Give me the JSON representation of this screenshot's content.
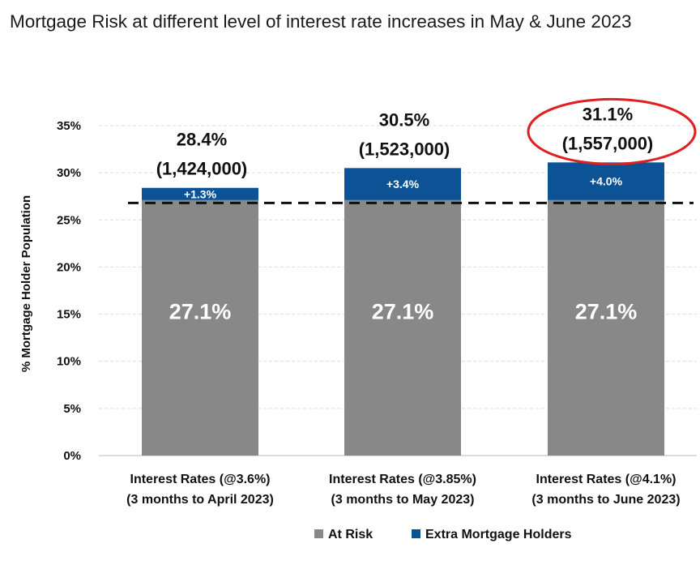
{
  "title": "Mortgage Risk at different level of interest rate increases in May & June 2023",
  "colors": {
    "at_risk": "#888888",
    "extra": "#0b5394",
    "highlight": "#e02020",
    "grid": "#dddddd"
  },
  "chart_data": {
    "type": "bar",
    "stacked": true,
    "ylabel": "% Mortgage Holder Population",
    "ylim": [
      0,
      35
    ],
    "yticks": [
      "0%",
      "5%",
      "10%",
      "15%",
      "20%",
      "25%",
      "30%",
      "35%"
    ],
    "ytick_values": [
      0,
      5,
      10,
      15,
      20,
      25,
      30,
      35
    ],
    "grid": true,
    "reference_line": 26.8,
    "categories": [
      [
        "Interest Rates (@3.6%)",
        "(3 months to April 2023)"
      ],
      [
        "Interest Rates (@3.85%)",
        "(3 months to May 2023)"
      ],
      [
        "Interest Rates (@4.1%)",
        "(3 months to June 2023)"
      ]
    ],
    "series": [
      {
        "name": "At Risk",
        "values": [
          27.1,
          27.1,
          27.1
        ],
        "labels": [
          "27.1%",
          "27.1%",
          "27.1%"
        ]
      },
      {
        "name": "Extra Mortgage Holders",
        "values": [
          1.3,
          3.4,
          4.0
        ],
        "labels": [
          "+1.3%",
          "+3.4%",
          "+4.0%"
        ]
      }
    ],
    "totals": [
      {
        "pct": "28.4%",
        "count": "(1,424,000)"
      },
      {
        "pct": "30.5%",
        "count": "(1,523,000)"
      },
      {
        "pct": "31.1%",
        "count": "(1,557,000)"
      }
    ],
    "highlighted_index": 2,
    "legend": [
      "At Risk",
      "Extra Mortgage Holders"
    ],
    "legend_position": "bottom"
  }
}
